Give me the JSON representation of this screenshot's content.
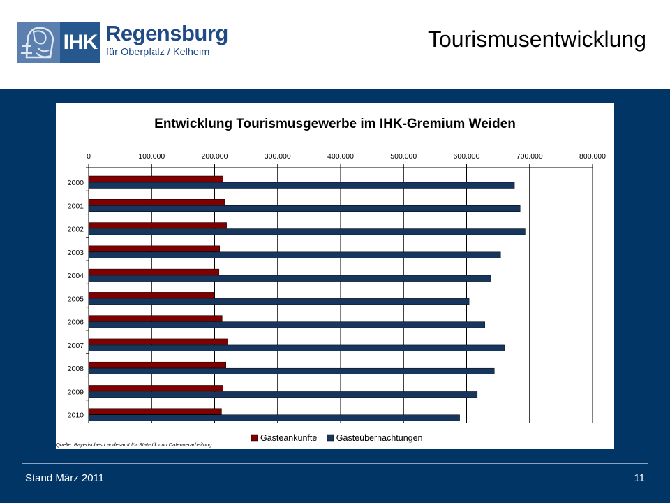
{
  "header": {
    "logo_text": "IHK",
    "logo_city": "Regensburg",
    "logo_subtitle": "für Oberpfalz / Kelheim",
    "slide_title": "Tourismusentwicklung"
  },
  "footer": {
    "date_text": "Stand März 2011",
    "page_number": "11"
  },
  "chart_data": {
    "type": "bar",
    "orientation": "horizontal",
    "title": "Entwicklung Tourismusgewerbe im IHK-Gremium Weiden",
    "categories": [
      "2000",
      "2001",
      "2002",
      "2003",
      "2004",
      "2005",
      "2006",
      "2007",
      "2008",
      "2009",
      "2010"
    ],
    "series": [
      {
        "name": "Gästeankünfte",
        "color": "#800000",
        "values": [
          213000,
          216000,
          219000,
          208000,
          207000,
          199000,
          212000,
          221000,
          218000,
          213000,
          211000
        ]
      },
      {
        "name": "Gästeübernachtungen",
        "color": "#17365d",
        "values": [
          676000,
          685000,
          693000,
          654000,
          639000,
          604000,
          629000,
          660000,
          644000,
          617000,
          589000
        ]
      }
    ],
    "ticks": [
      "0",
      "100.000",
      "200.000",
      "300.000",
      "400.000",
      "500.000",
      "600.000",
      "700.000",
      "800.000"
    ],
    "xlim": [
      0,
      800000
    ],
    "grid": true,
    "legend_position": "bottom",
    "source_note": "Quelle: Bayerisches Landesamt für Statistik und Datenverarbeitung"
  }
}
